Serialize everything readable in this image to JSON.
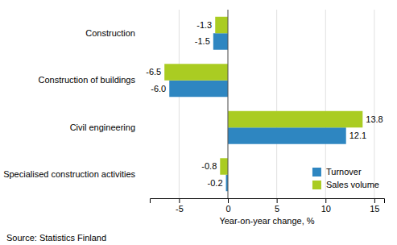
{
  "chart_data": {
    "type": "bar",
    "orientation": "horizontal",
    "categories": [
      "Construction",
      "Construction of buildings",
      "Civil engineering",
      "Specialised construction activities"
    ],
    "series": [
      {
        "name": "Turnover",
        "color": "#2E86C1",
        "values": [
          -1.5,
          -6.0,
          12.1,
          -0.2
        ],
        "value_labels": [
          "-1.5",
          "-6.0",
          "12.1",
          "-0.2"
        ]
      },
      {
        "name": "Sales volume",
        "color": "#AACC22",
        "values": [
          -1.3,
          -6.5,
          13.8,
          -0.8
        ],
        "value_labels": [
          "-1.3",
          "-6.5",
          "13.8",
          "-0.8"
        ]
      }
    ],
    "xlabel": "Year-on-year change, %",
    "xlim": [
      -8,
      16
    ],
    "xticks": [
      -5,
      0,
      5,
      10,
      15
    ],
    "grid": true,
    "data_labels": true,
    "legend": "lower right",
    "annotations": [
      "Source: Statistics Finland"
    ]
  }
}
